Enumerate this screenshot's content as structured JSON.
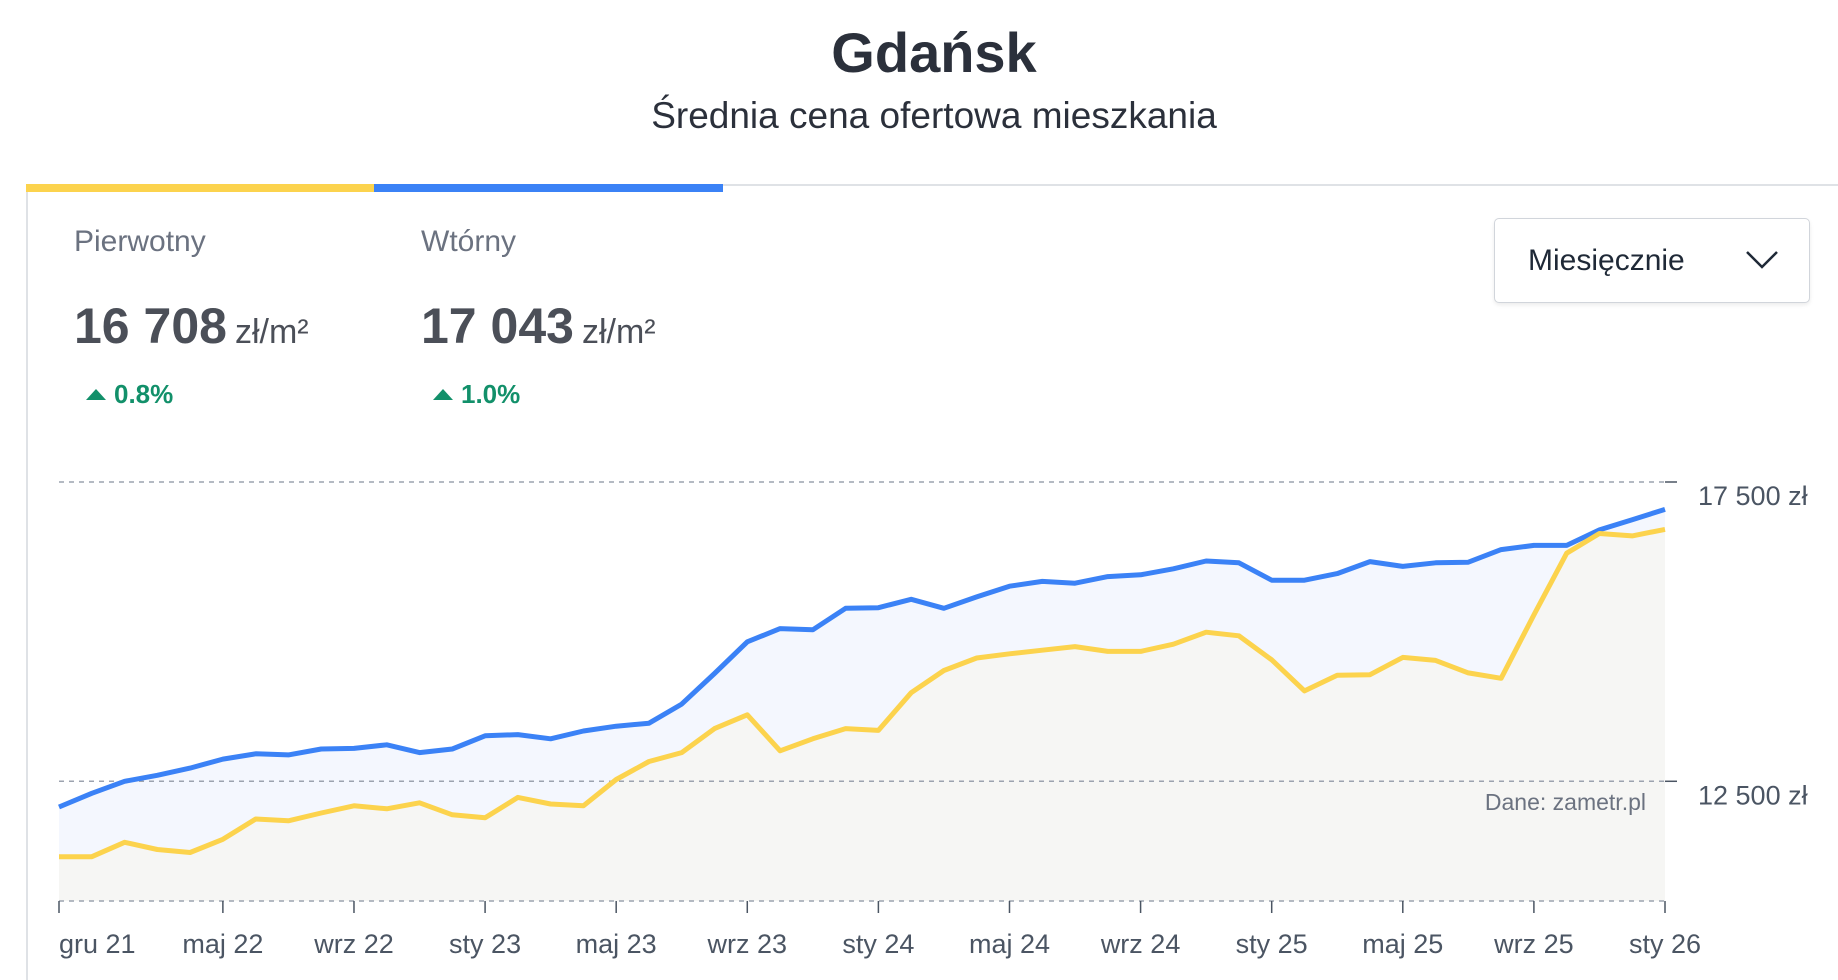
{
  "header": {
    "title": "Gdańsk",
    "subtitle": "Średnia cena ofertowa mieszkania"
  },
  "stats": [
    {
      "label": "Pierwotny",
      "value": "16 708",
      "unit": "zł/m²",
      "change": "0.8%",
      "direction": "up",
      "color": "#FCD34D"
    },
    {
      "label": "Wtórny",
      "value": "17 043",
      "unit": "zł/m²",
      "change": "1.0%",
      "direction": "up",
      "color": "#3B82F6"
    }
  ],
  "change_color": "#12906A",
  "period_select": {
    "selected": "Miesięcznie",
    "icon": "chevron-down-icon"
  },
  "source_note": "Dane: zametr.pl",
  "chart_data": {
    "type": "area",
    "title": "",
    "xlabel": "",
    "ylabel": "",
    "ylim": [
      10500,
      17500
    ],
    "grid": true,
    "y_ticks": [
      {
        "value": 17500,
        "label": "17 500 zł"
      },
      {
        "value": 12500,
        "label": "12 500 zł"
      }
    ],
    "x_ticks": [
      {
        "index": 0,
        "label": "gru 21"
      },
      {
        "index": 5,
        "label": "maj 22"
      },
      {
        "index": 9,
        "label": "wrz 22"
      },
      {
        "index": 13,
        "label": "sty 23"
      },
      {
        "index": 17,
        "label": "maj 23"
      },
      {
        "index": 21,
        "label": "wrz 23"
      },
      {
        "index": 25,
        "label": "sty 24"
      },
      {
        "index": 29,
        "label": "maj 24"
      },
      {
        "index": 33,
        "label": "wrz 24"
      },
      {
        "index": 37,
        "label": "sty 25"
      },
      {
        "index": 41,
        "label": "maj 25"
      },
      {
        "index": 45,
        "label": "wrz 25"
      },
      {
        "index": 49,
        "label": "sty 26"
      }
    ],
    "x_range": [
      "gru 21",
      "sty 26"
    ],
    "series": [
      {
        "name": "Wtórny",
        "color": "#3B82F6",
        "fill": "#F4F7FE",
        "values": [
          12070,
          12300,
          12500,
          12600,
          12720,
          12870,
          12960,
          12940,
          13040,
          13050,
          13110,
          12980,
          13040,
          13260,
          13280,
          13210,
          13340,
          13420,
          13470,
          13790,
          14300,
          14830,
          15050,
          15030,
          15390,
          15400,
          15540,
          15390,
          15580,
          15760,
          15840,
          15810,
          15920,
          15950,
          16050,
          16180,
          16150,
          15860,
          15860,
          15970,
          16170,
          16090,
          16150,
          16160,
          16370,
          16440,
          16440,
          16700,
          16870,
          17043
        ]
      },
      {
        "name": "Pierwotny",
        "color": "#FCD34D",
        "fill": "#F6F6F4",
        "values": [
          11240,
          11240,
          11480,
          11360,
          11310,
          11530,
          11870,
          11840,
          11970,
          12090,
          12040,
          12140,
          11940,
          11890,
          12230,
          12120,
          12090,
          12530,
          12830,
          12980,
          13380,
          13610,
          13010,
          13210,
          13380,
          13350,
          13980,
          14350,
          14560,
          14630,
          14690,
          14750,
          14670,
          14670,
          14790,
          14990,
          14930,
          14530,
          14010,
          14270,
          14280,
          14570,
          14520,
          14310,
          14220,
          15280,
          16310,
          16640,
          16600,
          16708
        ]
      }
    ]
  }
}
